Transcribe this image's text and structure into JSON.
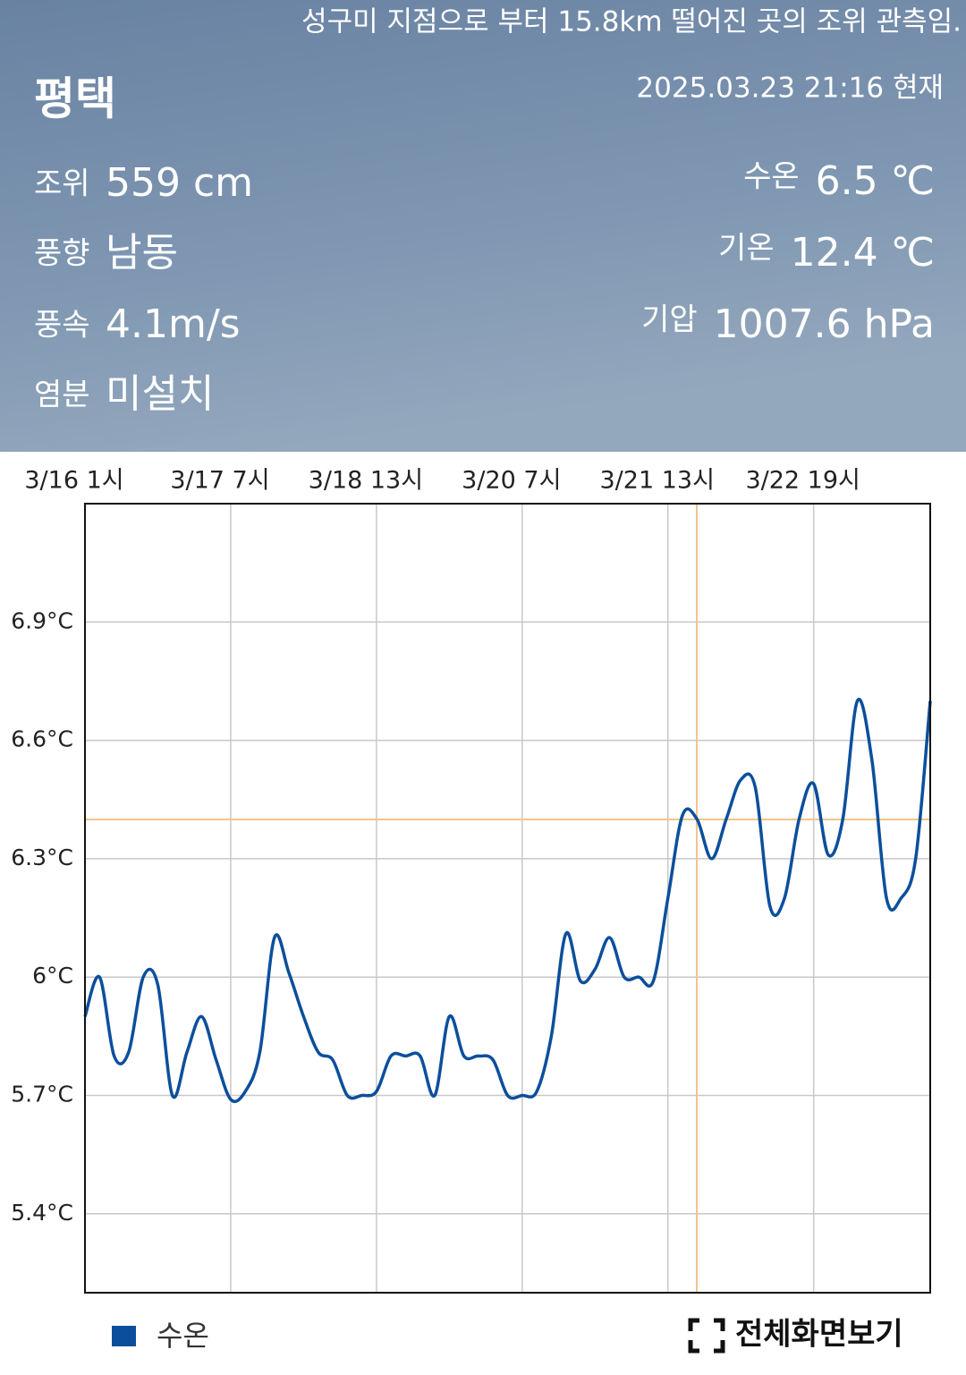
{
  "header": {
    "notice": "성구미 지점으로 부터 15.8km 떨어진 곳의 조위 관측임.",
    "station": "평택",
    "timestamp": "2025.03.23 21:16 현재",
    "left_items": [
      {
        "label": "조위",
        "value": "559 cm"
      },
      {
        "label": "풍향",
        "value": "남동"
      },
      {
        "label": "풍속",
        "value": "4.1m/s"
      },
      {
        "label": "염분",
        "value": "미설치"
      }
    ],
    "right_items": [
      {
        "label": "수온",
        "value": "6.5 ℃"
      },
      {
        "label": "기온",
        "value": "12.4 ℃"
      },
      {
        "label": "기압",
        "value": "1007.6 hPa"
      }
    ]
  },
  "chart_data": {
    "type": "line",
    "categories": [
      "3/16 1시",
      null,
      null,
      null,
      null,
      null,
      null,
      null,
      null,
      null,
      "3/17 7시",
      null,
      null,
      null,
      null,
      null,
      null,
      null,
      null,
      null,
      "3/18 13시",
      null,
      null,
      null,
      null,
      null,
      null,
      null,
      null,
      null,
      "3/20 7시",
      null,
      null,
      null,
      null,
      null,
      null,
      null,
      null,
      null,
      "3/21 13시",
      null,
      null,
      null,
      null,
      null,
      null,
      null,
      null,
      null,
      "3/22 19시",
      null,
      null,
      null,
      null,
      null,
      null,
      null,
      null
    ],
    "series": [
      {
        "name": "수온",
        "color": "#0b4f9c",
        "values": [
          5.9,
          6.0,
          5.8,
          5.81,
          6.0,
          5.98,
          5.7,
          5.81,
          5.9,
          5.79,
          5.69,
          5.71,
          5.81,
          6.1,
          6.01,
          5.9,
          5.81,
          5.79,
          5.7,
          5.7,
          5.71,
          5.8,
          5.8,
          5.8,
          5.7,
          5.9,
          5.8,
          5.8,
          5.79,
          5.7,
          5.7,
          5.71,
          5.85,
          6.11,
          5.99,
          6.02,
          6.1,
          6.0,
          6.0,
          5.99,
          6.2,
          6.41,
          6.4,
          6.3,
          6.4,
          6.5,
          6.48,
          6.18,
          6.2,
          6.4,
          6.49,
          6.31,
          6.4,
          6.7,
          6.55,
          6.2,
          6.2,
          6.3,
          6.7
        ]
      }
    ],
    "ylim": [
      5.2,
      7.2
    ],
    "yticks": [
      {
        "value": 5.4,
        "label": "5.4°C"
      },
      {
        "value": 5.7,
        "label": "5.7°C"
      },
      {
        "value": 6,
        "label": "6°C"
      },
      {
        "value": 6.3,
        "label": "6.3°C"
      },
      {
        "value": 6.6,
        "label": "6.6°C"
      },
      {
        "value": 6.9,
        "label": "6.9°C"
      }
    ],
    "grid": true
  },
  "footer": {
    "fullscreen": "전체화면보기"
  }
}
